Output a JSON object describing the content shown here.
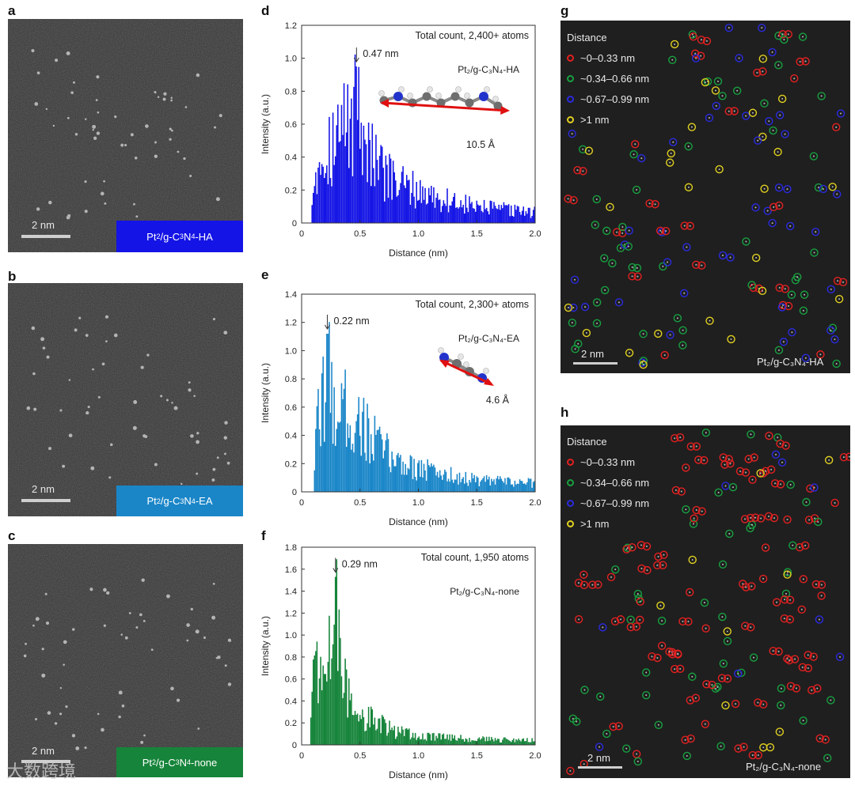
{
  "figure": {
    "panels": {
      "a": "a",
      "b": "b",
      "c": "c",
      "d": "d",
      "e": "e",
      "f": "f",
      "g": "g",
      "h": "h"
    },
    "stem": [
      {
        "id": "a",
        "scale_bar": "2 nm",
        "label_prefix": "Pt",
        "label_suffix": "/g-C",
        "n": "N",
        "sample": "-HA",
        "label_color": "#1414e6"
      },
      {
        "id": "b",
        "scale_bar": "2 nm",
        "label_prefix": "Pt",
        "label_suffix": "/g-C",
        "n": "N",
        "sample": "-EA",
        "label_color": "#1a86c8"
      },
      {
        "id": "c",
        "scale_bar": "2 nm",
        "label_prefix": "Pt",
        "label_suffix": "/g-C",
        "n": "N",
        "sample": "-none",
        "label_color": "#16843a"
      }
    ],
    "maps": [
      {
        "id": "g",
        "scale_bar": "2 nm",
        "sample_label": "Pt₂/g-C₃N₄-HA"
      },
      {
        "id": "h",
        "scale_bar": "2 nm",
        "sample_label": "Pt₂/g-C₃N₄-none"
      }
    ],
    "legend": {
      "title": "Distance",
      "items": [
        {
          "label": "~0–0.33 nm",
          "color": "#e32020"
        },
        {
          "label": "~0.34–0.66 nm",
          "color": "#18a040"
        },
        {
          "label": "~0.67–0.99 nm",
          "color": "#2a2ae0"
        },
        {
          "label": ">1 nm",
          "color": "#e0d020"
        }
      ]
    },
    "watermark": "大数跨境"
  },
  "chart_data": [
    {
      "id": "d",
      "type": "bar",
      "color": "#1414e6",
      "title": "Total count, 2,400+ atoms",
      "sample_label": "Pt₂/g-C₃N₄-HA",
      "peak_label": "0.47 nm",
      "peak_x": 0.47,
      "molecule_length": "10.5 Å",
      "xlabel": "Distance (nm)",
      "ylabel": "Intensity (a.u.)",
      "xlim": [
        0,
        2.0
      ],
      "ylim": [
        0,
        1.2
      ],
      "xticks": [
        "0",
        "0.5",
        "1.0",
        "1.5",
        "2.0"
      ],
      "yticks": [
        "0",
        "0.2",
        "0.4",
        "0.6",
        "0.8",
        "1.0",
        "1.2"
      ],
      "profile": [
        [
          0.08,
          0.1
        ],
        [
          0.12,
          0.45
        ],
        [
          0.2,
          0.55
        ],
        [
          0.28,
          0.62
        ],
        [
          0.36,
          0.72
        ],
        [
          0.44,
          0.78
        ],
        [
          0.47,
          0.95
        ],
        [
          0.55,
          0.62
        ],
        [
          0.65,
          0.42
        ],
        [
          0.8,
          0.3
        ],
        [
          1.0,
          0.24
        ],
        [
          1.2,
          0.18
        ],
        [
          1.5,
          0.12
        ],
        [
          2.0,
          0.08
        ]
      ]
    },
    {
      "id": "e",
      "type": "bar",
      "color": "#1a86c8",
      "title": "Total count, 2,300+ atoms",
      "sample_label": "Pt₂/g-C₃N₄-EA",
      "peak_label": "0.22 nm",
      "peak_x": 0.22,
      "molecule_length": "4.6 Å",
      "xlabel": "Distance (nm)",
      "ylabel": "Intensity (a.u.)",
      "xlim": [
        0,
        2.0
      ],
      "ylim": [
        0,
        1.4
      ],
      "xticks": [
        "0",
        "0.5",
        "1.0",
        "1.5",
        "2.0"
      ],
      "yticks": [
        "0",
        "0.2",
        "0.4",
        "0.6",
        "0.8",
        "1.0",
        "1.2",
        "1.4"
      ],
      "profile": [
        [
          0.1,
          0.12
        ],
        [
          0.13,
          0.5
        ],
        [
          0.22,
          1.12
        ],
        [
          0.3,
          0.7
        ],
        [
          0.4,
          0.72
        ],
        [
          0.5,
          0.6
        ],
        [
          0.6,
          0.48
        ],
        [
          0.7,
          0.36
        ],
        [
          0.85,
          0.26
        ],
        [
          1.0,
          0.22
        ],
        [
          1.2,
          0.16
        ],
        [
          1.5,
          0.1
        ],
        [
          2.0,
          0.08
        ]
      ]
    },
    {
      "id": "f",
      "type": "bar",
      "color": "#16843a",
      "title": "Total count, 1,950 atoms",
      "sample_label": "Pt₂/g-C₃N₄-none",
      "peak_label": "0.29 nm",
      "peak_x": 0.29,
      "molecule_length": "",
      "xlabel": "Distance (nm)",
      "ylabel": "Intensity (a.u.)",
      "xlim": [
        0,
        2.0
      ],
      "ylim": [
        0,
        1.8
      ],
      "xticks": [
        "0",
        "0.5",
        "1.0",
        "1.5",
        "2.0"
      ],
      "yticks": [
        "0",
        "0.2",
        "0.4",
        "0.6",
        "0.8",
        "1.0",
        "1.2",
        "1.4",
        "1.6",
        "1.8"
      ],
      "profile": [
        [
          0.07,
          0.2
        ],
        [
          0.1,
          0.9
        ],
        [
          0.15,
          0.85
        ],
        [
          0.22,
          0.78
        ],
        [
          0.29,
          1.53
        ],
        [
          0.35,
          0.7
        ],
        [
          0.45,
          0.45
        ],
        [
          0.6,
          0.28
        ],
        [
          0.8,
          0.15
        ],
        [
          1.0,
          0.1
        ],
        [
          1.3,
          0.08
        ],
        [
          1.6,
          0.06
        ],
        [
          2.0,
          0.05
        ]
      ]
    }
  ]
}
